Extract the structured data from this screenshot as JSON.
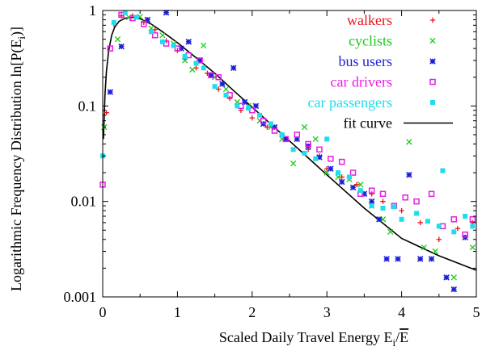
{
  "chart_data": {
    "type": "scatter",
    "xlabel": "Scaled Daily Travel Energy E",
    "xlabel_sub": "i",
    "xlabel_slash": "/",
    "xlabel_overbar": "E",
    "ylabel": "Logarithmic Frequency Distribution ln[P(E",
    "ylabel_sub": "i",
    "ylabel_tail": ")]",
    "xlim": [
      0,
      5
    ],
    "ylim": [
      0.001,
      1
    ],
    "yscale": "log",
    "x_ticks": [
      "0",
      "1",
      "2",
      "3",
      "4",
      "5"
    ],
    "y_ticks": [
      "0.001",
      "0.01",
      "0.1",
      "1"
    ],
    "legend_position": "top-right",
    "series": [
      {
        "name": "walkers",
        "color": "#e8141c",
        "marker": "plus",
        "points": [
          [
            0.05,
            0.085
          ],
          [
            0.15,
            0.72
          ],
          [
            0.25,
            0.88
          ],
          [
            0.4,
            0.88
          ],
          [
            0.55,
            0.75
          ],
          [
            0.7,
            0.63
          ],
          [
            0.85,
            0.48
          ],
          [
            1.0,
            0.38
          ],
          [
            1.1,
            0.31
          ],
          [
            1.25,
            0.25
          ],
          [
            1.4,
            0.22
          ],
          [
            1.55,
            0.15
          ],
          [
            1.7,
            0.12
          ],
          [
            1.85,
            0.09
          ],
          [
            2.0,
            0.075
          ],
          [
            2.2,
            0.06
          ],
          [
            2.4,
            0.05
          ],
          [
            2.6,
            0.045
          ],
          [
            2.75,
            0.035
          ],
          [
            2.9,
            0.03
          ],
          [
            3.0,
            0.022
          ],
          [
            3.2,
            0.018
          ],
          [
            3.4,
            0.015
          ],
          [
            3.6,
            0.012
          ],
          [
            3.75,
            0.01
          ],
          [
            4.0,
            0.008
          ],
          [
            4.25,
            0.006
          ],
          [
            4.5,
            0.004
          ],
          [
            4.75,
            0.0052
          ],
          [
            4.95,
            0.006
          ]
        ]
      },
      {
        "name": "cyclists",
        "color": "#1ec81e",
        "marker": "cross",
        "points": [
          [
            0.02,
            0.06
          ],
          [
            0.2,
            0.5
          ],
          [
            0.35,
            0.85
          ],
          [
            0.5,
            0.86
          ],
          [
            0.65,
            0.65
          ],
          [
            0.8,
            0.55
          ],
          [
            0.95,
            0.45
          ],
          [
            1.1,
            0.3
          ],
          [
            1.2,
            0.24
          ],
          [
            1.35,
            0.43
          ],
          [
            1.5,
            0.2
          ],
          [
            1.65,
            0.15
          ],
          [
            1.8,
            0.11
          ],
          [
            1.95,
            0.1
          ],
          [
            2.1,
            0.07
          ],
          [
            2.25,
            0.06
          ],
          [
            2.4,
            0.045
          ],
          [
            2.55,
            0.025
          ],
          [
            2.7,
            0.06
          ],
          [
            2.85,
            0.045
          ],
          [
            3.0,
            0.02
          ],
          [
            3.15,
            0.018
          ],
          [
            3.3,
            0.017
          ],
          [
            3.45,
            0.015
          ],
          [
            3.6,
            0.009
          ],
          [
            3.75,
            0.0065
          ],
          [
            3.85,
            0.0048
          ],
          [
            4.1,
            0.042
          ],
          [
            4.3,
            0.0033
          ],
          [
            4.45,
            0.003
          ],
          [
            4.7,
            0.0016
          ],
          [
            4.95,
            0.0033
          ]
        ]
      },
      {
        "name": "bus users",
        "color": "#1d20d8",
        "marker": "star",
        "points": [
          [
            0.1,
            0.14
          ],
          [
            0.25,
            0.42
          ],
          [
            0.6,
            0.8
          ],
          [
            0.85,
            0.95
          ],
          [
            1.05,
            0.4
          ],
          [
            1.15,
            0.47
          ],
          [
            1.3,
            0.3
          ],
          [
            1.45,
            0.21
          ],
          [
            1.6,
            0.17
          ],
          [
            1.75,
            0.25
          ],
          [
            1.9,
            0.11
          ],
          [
            2.05,
            0.1
          ],
          [
            2.15,
            0.065
          ],
          [
            2.3,
            0.06
          ],
          [
            2.45,
            0.045
          ],
          [
            2.6,
            0.045
          ],
          [
            2.75,
            0.038
          ],
          [
            2.9,
            0.029
          ],
          [
            3.05,
            0.022
          ],
          [
            3.2,
            0.016
          ],
          [
            3.35,
            0.014
          ],
          [
            3.5,
            0.012
          ],
          [
            3.6,
            0.01
          ],
          [
            3.7,
            0.0065
          ],
          [
            3.8,
            0.0025
          ],
          [
            3.95,
            0.0025
          ],
          [
            4.1,
            0.019
          ],
          [
            4.25,
            0.0025
          ],
          [
            4.4,
            0.0025
          ],
          [
            4.6,
            0.0016
          ],
          [
            4.7,
            0.0012
          ],
          [
            4.85,
            0.0042
          ]
        ]
      },
      {
        "name": "car drivers",
        "color": "#e81ee8",
        "marker": "square",
        "points": [
          [
            0.0,
            0.015
          ],
          [
            0.1,
            0.4
          ],
          [
            0.25,
            0.9
          ],
          [
            0.4,
            0.83
          ],
          [
            0.55,
            0.72
          ],
          [
            0.7,
            0.55
          ],
          [
            0.85,
            0.45
          ],
          [
            1.0,
            0.4
          ],
          [
            1.15,
            0.34
          ],
          [
            1.3,
            0.3
          ],
          [
            1.45,
            0.21
          ],
          [
            1.55,
            0.2
          ],
          [
            1.7,
            0.13
          ],
          [
            1.85,
            0.1
          ],
          [
            2.0,
            0.09
          ],
          [
            2.15,
            0.07
          ],
          [
            2.3,
            0.055
          ],
          [
            2.45,
            0.045
          ],
          [
            2.6,
            0.05
          ],
          [
            2.75,
            0.04
          ],
          [
            2.9,
            0.035
          ],
          [
            3.05,
            0.028
          ],
          [
            3.2,
            0.026
          ],
          [
            3.35,
            0.02
          ],
          [
            3.45,
            0.012
          ],
          [
            3.6,
            0.013
          ],
          [
            3.75,
            0.012
          ],
          [
            3.9,
            0.009
          ],
          [
            4.05,
            0.011
          ],
          [
            4.2,
            0.01
          ],
          [
            4.4,
            0.012
          ],
          [
            4.55,
            0.0055
          ],
          [
            4.7,
            0.0065
          ],
          [
            4.85,
            0.0045
          ],
          [
            4.95,
            0.0065
          ]
        ]
      },
      {
        "name": "car passengers",
        "color": "#20dcec",
        "marker": "filled-square",
        "points": [
          [
            0.0,
            0.03
          ],
          [
            0.15,
            0.75
          ],
          [
            0.3,
            0.95
          ],
          [
            0.45,
            0.85
          ],
          [
            0.65,
            0.6
          ],
          [
            0.8,
            0.47
          ],
          [
            0.95,
            0.43
          ],
          [
            1.1,
            0.33
          ],
          [
            1.25,
            0.28
          ],
          [
            1.35,
            0.25
          ],
          [
            1.5,
            0.16
          ],
          [
            1.65,
            0.13
          ],
          [
            1.8,
            0.1
          ],
          [
            1.95,
            0.095
          ],
          [
            2.1,
            0.08
          ],
          [
            2.25,
            0.065
          ],
          [
            2.4,
            0.05
          ],
          [
            2.55,
            0.035
          ],
          [
            2.7,
            0.032
          ],
          [
            2.85,
            0.028
          ],
          [
            3.0,
            0.045
          ],
          [
            3.15,
            0.02
          ],
          [
            3.3,
            0.018
          ],
          [
            3.45,
            0.013
          ],
          [
            3.6,
            0.009
          ],
          [
            3.75,
            0.0085
          ],
          [
            3.9,
            0.0088
          ],
          [
            4.0,
            0.0065
          ],
          [
            4.2,
            0.0075
          ],
          [
            4.35,
            0.0062
          ],
          [
            4.5,
            0.0055
          ],
          [
            4.55,
            0.021
          ],
          [
            4.7,
            0.0048
          ],
          [
            4.85,
            0.007
          ],
          [
            4.95,
            0.0055
          ]
        ]
      }
    ],
    "fit": {
      "name": "fit curve",
      "color": "#000000",
      "points": [
        [
          0.01,
          0.045
        ],
        [
          0.03,
          0.13
        ],
        [
          0.05,
          0.23
        ],
        [
          0.08,
          0.38
        ],
        [
          0.12,
          0.55
        ],
        [
          0.16,
          0.67
        ],
        [
          0.22,
          0.77
        ],
        [
          0.3,
          0.83
        ],
        [
          0.4,
          0.85
        ],
        [
          0.5,
          0.82
        ],
        [
          0.65,
          0.72
        ],
        [
          0.8,
          0.6
        ],
        [
          1.0,
          0.46
        ],
        [
          1.25,
          0.32
        ],
        [
          1.5,
          0.22
        ],
        [
          1.75,
          0.145
        ],
        [
          2.0,
          0.097
        ],
        [
          2.5,
          0.043
        ],
        [
          3.0,
          0.019
        ],
        [
          3.5,
          0.0085
        ],
        [
          4.0,
          0.0041
        ],
        [
          4.5,
          0.0027
        ],
        [
          5.0,
          0.0019
        ]
      ]
    }
  }
}
